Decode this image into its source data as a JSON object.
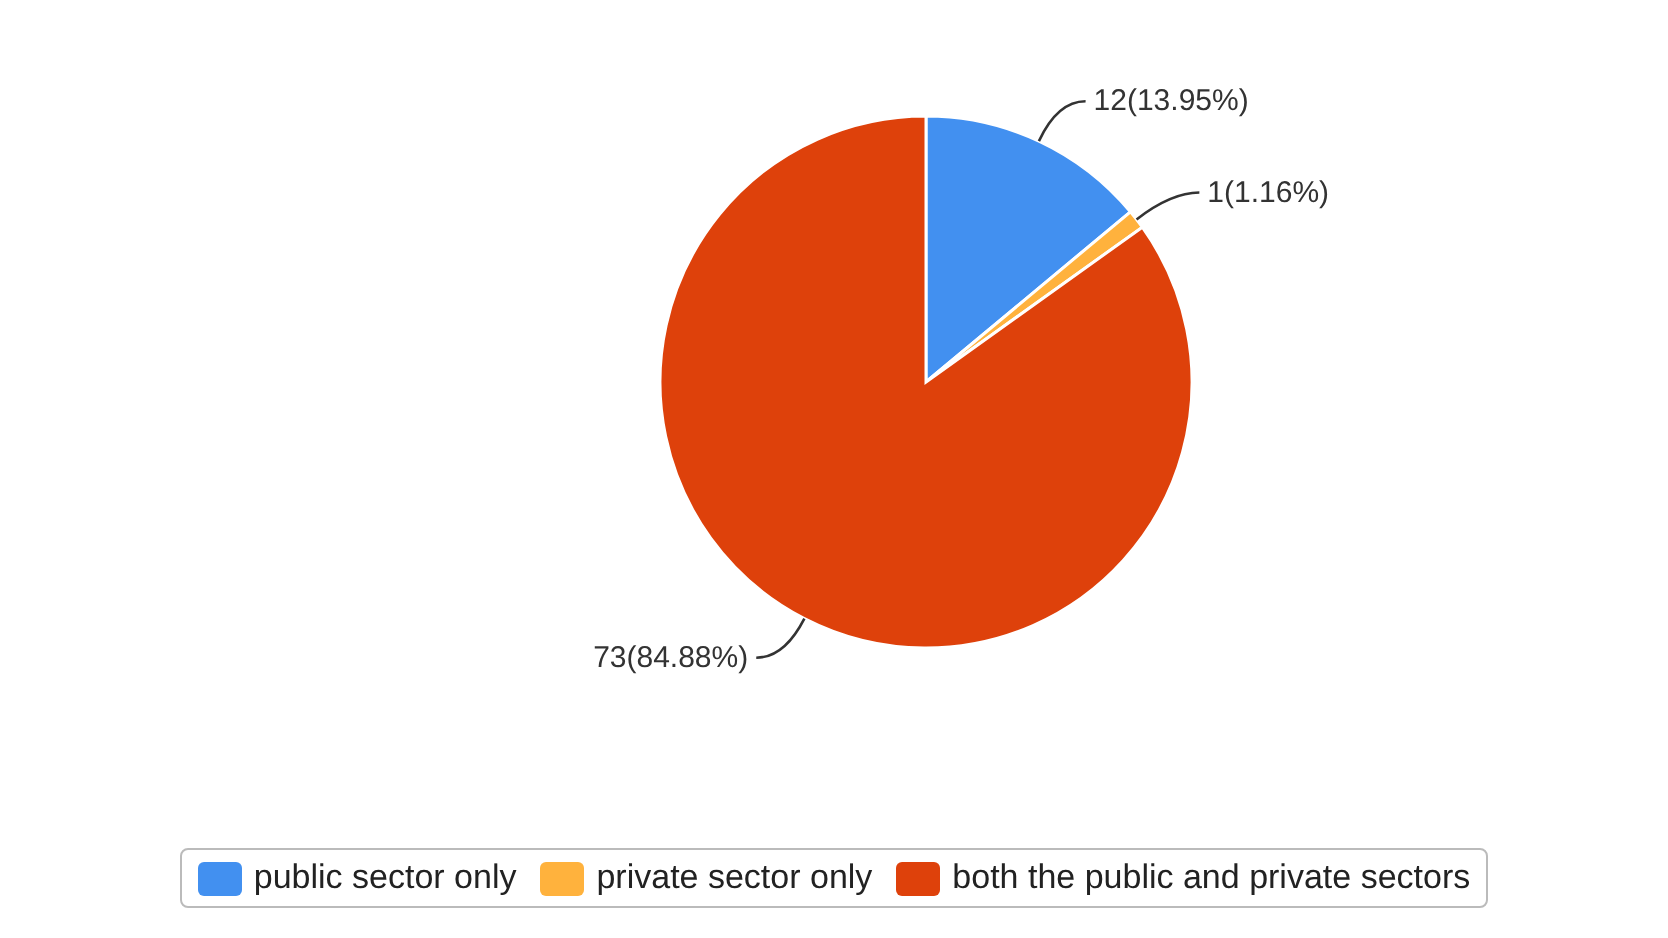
{
  "chart_data": {
    "type": "pie",
    "categories": [
      "public sector only",
      "private sector only",
      "both the public and private sectors"
    ],
    "values": [
      12,
      1,
      73
    ],
    "colors": [
      "#4290f0",
      "#ffb23d",
      "#de410b"
    ],
    "value_labels": [
      "12(13.95%)",
      "1(1.16%)",
      "73(84.88%)"
    ],
    "legend": "bottom"
  }
}
